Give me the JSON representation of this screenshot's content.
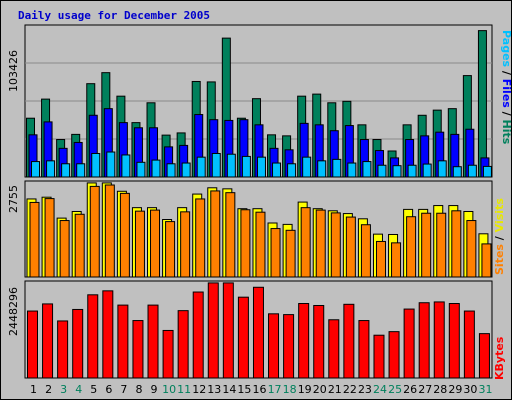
{
  "title": "Daily usage for December 2005",
  "colors": {
    "background": "#c0c0c0",
    "hits": "#00805c",
    "files": "#0000ff",
    "pages": "#00c0ff",
    "visits": "#ffff00",
    "sites": "#ff8000",
    "kbytes": "#ff0000",
    "title": "#0000cc",
    "weekend_day": "#00805c"
  },
  "y_axis_labels": {
    "hits_panel_max": "103426",
    "visits_panel_max": "2755",
    "kbytes_panel_max": "2448296"
  },
  "legend": {
    "top": {
      "pages": "Pages",
      "sep1": " / ",
      "files": "Files",
      "sep2": " / ",
      "hits": "Hits"
    },
    "middle": {
      "sites": "Sites",
      "sep": " / ",
      "visits": "Visits"
    },
    "bottom": {
      "kbytes": "KBytes"
    }
  },
  "chart_data": {
    "type": "bar",
    "title": "Daily usage for December 2005",
    "categories": [
      "1",
      "2",
      "3",
      "4",
      "5",
      "6",
      "7",
      "8",
      "9",
      "10",
      "11",
      "12",
      "13",
      "14",
      "15",
      "16",
      "17",
      "18",
      "19",
      "20",
      "21",
      "22",
      "23",
      "24",
      "25",
      "26",
      "27",
      "28",
      "29",
      "30",
      "31"
    ],
    "weekend_days": [
      "3",
      "4",
      "10",
      "11",
      "17",
      "18",
      "24",
      "25",
      "31"
    ],
    "panels": [
      {
        "name": "hits",
        "ymax": 103426,
        "y_label": "103426",
        "series": [
          {
            "name": "Hits",
            "values": [
              40000,
              53000,
              25500,
              29000,
              63500,
              71000,
              55000,
              37000,
              50500,
              28500,
              30000,
              65000,
              64700,
              94500,
              40000,
              53300,
              28700,
              28000,
              55000,
              56400,
              50500,
              51500,
              35500,
              25500,
              17700,
              35500,
              42000,
              45500,
              46500,
              69000,
              99600
            ]
          },
          {
            "name": "Files",
            "values": [
              28700,
              37500,
              19500,
              23500,
              42000,
              46500,
              37000,
              33500,
              33500,
              20500,
              21500,
              42500,
              39000,
              38500,
              39000,
              35500,
              19500,
              18500,
              36500,
              35500,
              31500,
              35000,
              25500,
              18000,
              13000,
              25500,
              28000,
              30500,
              29000,
              32500,
              13000
            ]
          },
          {
            "name": "Pages",
            "values": [
              10500,
              11000,
              9000,
              9000,
              16000,
              17000,
              15000,
              10000,
              11500,
              9000,
              9500,
              13500,
              16000,
              15500,
              14000,
              13500,
              9500,
              9000,
              13500,
              11000,
              12000,
              9500,
              10500,
              8000,
              7700,
              8000,
              8800,
              11000,
              7000,
              8000,
              7200
            ]
          }
        ]
      },
      {
        "name": "visits",
        "ymax": 2755,
        "y_label": "2755",
        "series": [
          {
            "name": "Visits",
            "values": [
              2240,
              2290,
              1690,
              1880,
              2700,
              2700,
              2460,
              1990,
              1990,
              1650,
              1990,
              2380,
              2560,
              2530,
              1960,
              1960,
              1550,
              1510,
              2150,
              1960,
              1900,
              1820,
              1670,
              1230,
              1220,
              1940,
              1940,
              2050,
              2050,
              1880,
              1240
            ]
          },
          {
            "name": "Sites",
            "values": [
              2140,
              2250,
              1620,
              1800,
              2600,
              2640,
              2400,
              1890,
              1920,
              1590,
              1870,
              2240,
              2470,
              2420,
              1930,
              1860,
              1390,
              1340,
              1990,
              1920,
              1840,
              1720,
              1500,
              1020,
              980,
              1730,
              1830,
              1830,
              1900,
              1620,
              950
            ]
          }
        ]
      },
      {
        "name": "kbytes",
        "ymax": 2448296,
        "y_label": "2448296",
        "series": [
          {
            "name": "KBytes",
            "values": [
              1690000,
              1870000,
              1440000,
              1730000,
              2100000,
              2200000,
              1840000,
              1450000,
              1840000,
              1200000,
              1700000,
              2170000,
              2400000,
              2400000,
              2040000,
              2290000,
              1620000,
              1600000,
              1880000,
              1830000,
              1470000,
              1860000,
              1450000,
              1080000,
              1170000,
              1740000,
              1900000,
              1920000,
              1880000,
              1690000,
              1120000
            ]
          }
        ]
      }
    ]
  }
}
